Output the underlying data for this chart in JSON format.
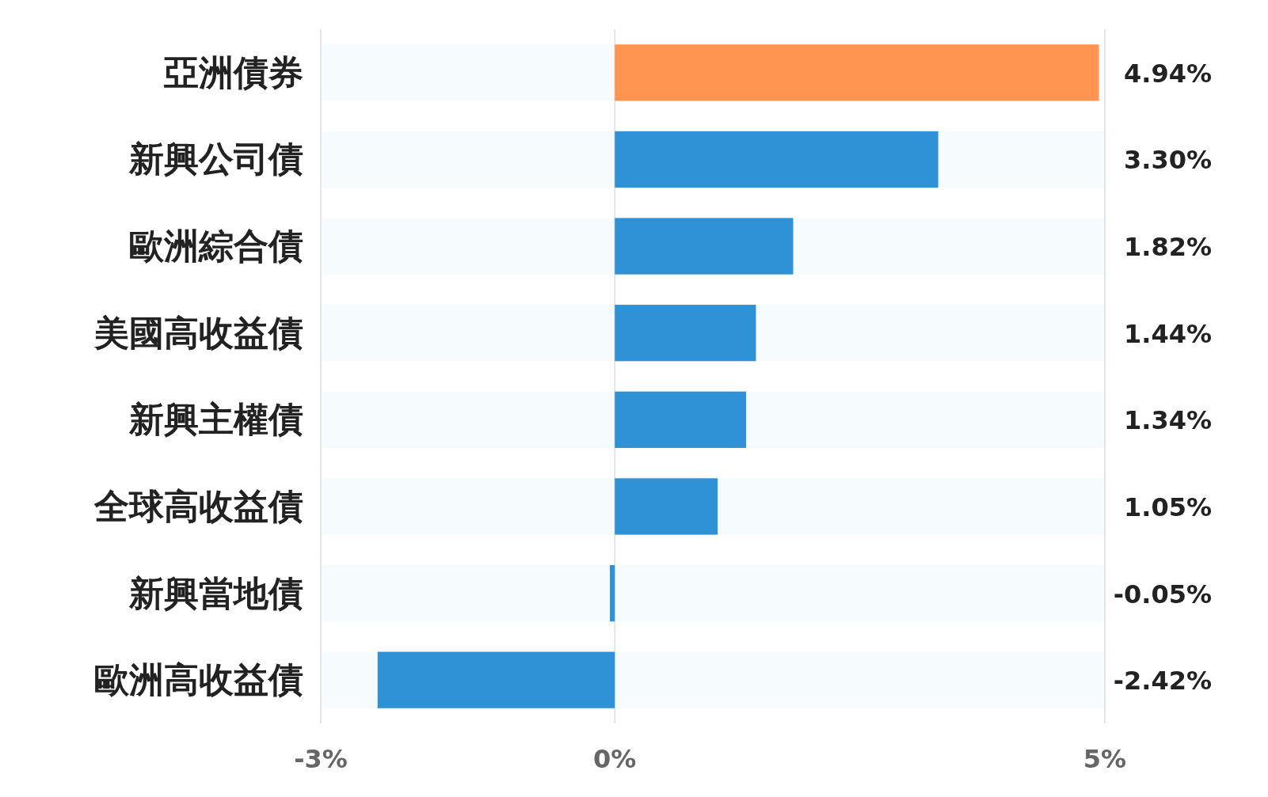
{
  "chart_data": {
    "type": "bar",
    "orientation": "horizontal",
    "categories": [
      "亞洲債券",
      "新興公司債",
      "歐洲綜合債",
      "美國高收益債",
      "新興主權債",
      "全球高收益債",
      "新興當地債",
      "歐洲高收益債"
    ],
    "values": [
      4.94,
      3.3,
      1.82,
      1.44,
      1.34,
      1.05,
      -0.05,
      -2.42
    ],
    "colors": [
      "#ff9550",
      "#2f91d6",
      "#2f91d6",
      "#2f91d6",
      "#2f91d6",
      "#2f91d6",
      "#2f91d6",
      "#2f91d6"
    ],
    "value_labels": [
      "4.94%",
      "3.30%",
      "1.82%",
      "1.44%",
      "1.34%",
      "1.05%",
      "-0.05%",
      "-2.42%"
    ],
    "xlim": [
      -3,
      5
    ],
    "xticks": [
      {
        "value": -3,
        "label": "-3%"
      },
      {
        "value": 0,
        "label": "0%"
      },
      {
        "value": 5,
        "label": "5%"
      }
    ],
    "grid": "x"
  }
}
